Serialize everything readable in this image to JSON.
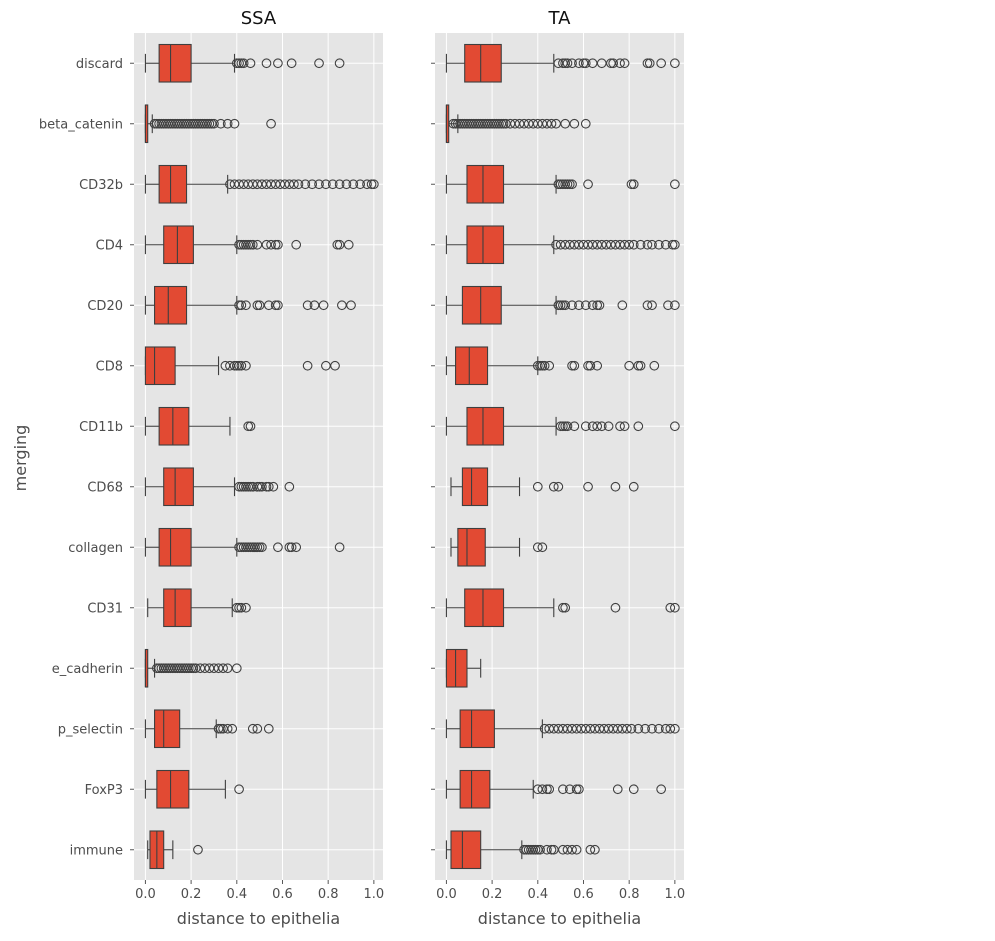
{
  "chart_data": {
    "type": "boxplot",
    "orientation": "horizontal",
    "ylabel": "merging",
    "categories": [
      "discard",
      "beta_catenin",
      "CD32b",
      "CD4",
      "CD20",
      "CD8",
      "CD11b",
      "CD68",
      "collagen",
      "CD31",
      "e_cadherin",
      "p_selectin",
      "FoxP3",
      "immune"
    ],
    "xlim": [
      -0.05,
      1.04
    ],
    "xticks": [
      "0.0",
      "0.2",
      "0.4",
      "0.6",
      "0.8",
      "1.0"
    ],
    "grid": true,
    "box_color": "#E24A33",
    "background_color": "#E5E5E5",
    "panels": [
      {
        "title": "SSA",
        "xlabel": "distance to epithelia",
        "boxes": [
          {
            "category": "discard",
            "whislo": 0.0,
            "q1": 0.06,
            "med": 0.11,
            "q3": 0.2,
            "whishi": 0.39,
            "fliers": [
              0.4,
              0.41,
              0.42,
              0.43,
              0.46,
              0.53,
              0.58,
              0.64,
              0.76,
              0.85
            ]
          },
          {
            "category": "beta_catenin",
            "whislo": 0.0,
            "q1": 0.0,
            "med": 0.0,
            "q3": 0.01,
            "whishi": 0.03,
            "fliers": [
              0.04,
              0.05,
              0.06,
              0.07,
              0.08,
              0.09,
              0.1,
              0.11,
              0.12,
              0.13,
              0.14,
              0.15,
              0.16,
              0.17,
              0.18,
              0.19,
              0.2,
              0.21,
              0.22,
              0.23,
              0.24,
              0.25,
              0.26,
              0.27,
              0.28,
              0.29,
              0.3,
              0.33,
              0.36,
              0.39,
              0.55
            ]
          },
          {
            "category": "CD32b",
            "whislo": 0.0,
            "q1": 0.06,
            "med": 0.11,
            "q3": 0.18,
            "whishi": 0.36,
            "fliers": [
              0.37,
              0.39,
              0.41,
              0.43,
              0.45,
              0.47,
              0.49,
              0.51,
              0.53,
              0.55,
              0.57,
              0.59,
              0.61,
              0.63,
              0.65,
              0.67,
              0.7,
              0.73,
              0.76,
              0.79,
              0.82,
              0.85,
              0.88,
              0.91,
              0.94,
              0.97,
              0.99,
              1.0
            ]
          },
          {
            "category": "CD4",
            "whislo": 0.0,
            "q1": 0.08,
            "med": 0.14,
            "q3": 0.21,
            "whishi": 0.4,
            "fliers": [
              0.41,
              0.42,
              0.43,
              0.44,
              0.45,
              0.46,
              0.47,
              0.49,
              0.53,
              0.55,
              0.57,
              0.58,
              0.66,
              0.84,
              0.85,
              0.89
            ]
          },
          {
            "category": "CD20",
            "whislo": 0.0,
            "q1": 0.04,
            "med": 0.1,
            "q3": 0.18,
            "whishi": 0.4,
            "fliers": [
              0.41,
              0.42,
              0.44,
              0.49,
              0.5,
              0.54,
              0.57,
              0.58,
              0.71,
              0.74,
              0.78,
              0.86,
              0.9
            ]
          },
          {
            "category": "CD8",
            "whislo": 0.0,
            "q1": 0.0,
            "med": 0.04,
            "q3": 0.13,
            "whishi": 0.32,
            "fliers": [
              0.35,
              0.37,
              0.39,
              0.4,
              0.41,
              0.42,
              0.44,
              0.71,
              0.79,
              0.83
            ]
          },
          {
            "category": "CD11b",
            "whislo": 0.0,
            "q1": 0.06,
            "med": 0.12,
            "q3": 0.19,
            "whishi": 0.37,
            "fliers": [
              0.45,
              0.46
            ]
          },
          {
            "category": "CD68",
            "whislo": 0.0,
            "q1": 0.08,
            "med": 0.13,
            "q3": 0.21,
            "whishi": 0.39,
            "fliers": [
              0.41,
              0.42,
              0.43,
              0.44,
              0.45,
              0.46,
              0.47,
              0.49,
              0.5,
              0.51,
              0.53,
              0.54,
              0.56,
              0.63
            ]
          },
          {
            "category": "collagen",
            "whislo": 0.0,
            "q1": 0.06,
            "med": 0.11,
            "q3": 0.2,
            "whishi": 0.4,
            "fliers": [
              0.41,
              0.42,
              0.43,
              0.44,
              0.45,
              0.46,
              0.47,
              0.48,
              0.49,
              0.5,
              0.51,
              0.58,
              0.63,
              0.64,
              0.66,
              0.85
            ]
          },
          {
            "category": "CD31",
            "whislo": 0.01,
            "q1": 0.08,
            "med": 0.13,
            "q3": 0.2,
            "whishi": 0.38,
            "fliers": [
              0.4,
              0.41,
              0.42,
              0.44
            ]
          },
          {
            "category": "e_cadherin",
            "whislo": 0.0,
            "q1": 0.0,
            "med": 0.0,
            "q3": 0.01,
            "whishi": 0.04,
            "fliers": [
              0.05,
              0.06,
              0.07,
              0.08,
              0.09,
              0.1,
              0.11,
              0.12,
              0.13,
              0.14,
              0.15,
              0.16,
              0.17,
              0.18,
              0.19,
              0.2,
              0.21,
              0.22,
              0.24,
              0.26,
              0.28,
              0.3,
              0.32,
              0.34,
              0.36,
              0.4
            ]
          },
          {
            "category": "p_selectin",
            "whislo": 0.0,
            "q1": 0.04,
            "med": 0.08,
            "q3": 0.15,
            "whishi": 0.31,
            "fliers": [
              0.32,
              0.33,
              0.34,
              0.36,
              0.38,
              0.47,
              0.49,
              0.54
            ]
          },
          {
            "category": "FoxP3",
            "whislo": 0.0,
            "q1": 0.05,
            "med": 0.11,
            "q3": 0.19,
            "whishi": 0.35,
            "fliers": [
              0.41
            ]
          },
          {
            "category": "immune",
            "whislo": 0.01,
            "q1": 0.02,
            "med": 0.05,
            "q3": 0.08,
            "whishi": 0.12,
            "fliers": [
              0.23
            ]
          }
        ]
      },
      {
        "title": "TA",
        "xlabel": "distance to epithelia",
        "boxes": [
          {
            "category": "discard",
            "whislo": 0.0,
            "q1": 0.08,
            "med": 0.15,
            "q3": 0.24,
            "whishi": 0.47,
            "fliers": [
              0.49,
              0.51,
              0.52,
              0.53,
              0.55,
              0.58,
              0.6,
              0.61,
              0.64,
              0.68,
              0.72,
              0.73,
              0.76,
              0.78,
              0.88,
              0.89,
              0.94,
              1.0
            ]
          },
          {
            "category": "beta_catenin",
            "whislo": 0.0,
            "q1": 0.0,
            "med": 0.0,
            "q3": 0.01,
            "whishi": 0.05,
            "fliers": [
              0.03,
              0.04,
              0.05,
              0.06,
              0.07,
              0.08,
              0.09,
              0.1,
              0.11,
              0.12,
              0.13,
              0.14,
              0.15,
              0.16,
              0.17,
              0.18,
              0.19,
              0.2,
              0.21,
              0.22,
              0.23,
              0.24,
              0.25,
              0.26,
              0.28,
              0.3,
              0.32,
              0.34,
              0.36,
              0.38,
              0.4,
              0.42,
              0.44,
              0.46,
              0.48,
              0.52,
              0.56,
              0.61
            ]
          },
          {
            "category": "CD32b",
            "whislo": 0.0,
            "q1": 0.09,
            "med": 0.16,
            "q3": 0.25,
            "whishi": 0.48,
            "fliers": [
              0.49,
              0.5,
              0.51,
              0.52,
              0.53,
              0.54,
              0.55,
              0.62,
              0.81,
              0.82,
              1.0
            ]
          },
          {
            "category": "CD4",
            "whislo": 0.0,
            "q1": 0.09,
            "med": 0.16,
            "q3": 0.25,
            "whishi": 0.47,
            "fliers": [
              0.48,
              0.5,
              0.52,
              0.54,
              0.56,
              0.58,
              0.6,
              0.62,
              0.64,
              0.66,
              0.68,
              0.7,
              0.72,
              0.74,
              0.76,
              0.78,
              0.8,
              0.82,
              0.85,
              0.88,
              0.9,
              0.93,
              0.96,
              0.99,
              1.0
            ]
          },
          {
            "category": "CD20",
            "whislo": 0.0,
            "q1": 0.07,
            "med": 0.15,
            "q3": 0.24,
            "whishi": 0.48,
            "fliers": [
              0.49,
              0.5,
              0.51,
              0.52,
              0.55,
              0.58,
              0.61,
              0.64,
              0.66,
              0.67,
              0.77,
              0.88,
              0.9,
              0.97,
              1.0
            ]
          },
          {
            "category": "CD8",
            "whislo": 0.0,
            "q1": 0.04,
            "med": 0.1,
            "q3": 0.18,
            "whishi": 0.4,
            "fliers": [
              0.4,
              0.41,
              0.42,
              0.43,
              0.45,
              0.55,
              0.56,
              0.62,
              0.63,
              0.66,
              0.8,
              0.84,
              0.85,
              0.91
            ]
          },
          {
            "category": "CD11b",
            "whislo": 0.0,
            "q1": 0.09,
            "med": 0.16,
            "q3": 0.25,
            "whishi": 0.48,
            "fliers": [
              0.5,
              0.51,
              0.52,
              0.53,
              0.56,
              0.61,
              0.64,
              0.66,
              0.68,
              0.71,
              0.76,
              0.78,
              0.84,
              1.0
            ]
          },
          {
            "category": "CD68",
            "whislo": 0.02,
            "q1": 0.07,
            "med": 0.11,
            "q3": 0.18,
            "whishi": 0.32,
            "fliers": [
              0.4,
              0.47,
              0.49,
              0.62,
              0.74,
              0.82
            ]
          },
          {
            "category": "collagen",
            "whislo": 0.02,
            "q1": 0.05,
            "med": 0.09,
            "q3": 0.17,
            "whishi": 0.32,
            "fliers": [
              0.4,
              0.42
            ]
          },
          {
            "category": "CD31",
            "whislo": 0.0,
            "q1": 0.08,
            "med": 0.16,
            "q3": 0.25,
            "whishi": 0.47,
            "fliers": [
              0.51,
              0.52,
              0.74,
              0.98,
              1.0
            ]
          },
          {
            "category": "e_cadherin",
            "whislo": 0.0,
            "q1": 0.0,
            "med": 0.04,
            "q3": 0.09,
            "whishi": 0.15,
            "fliers": []
          },
          {
            "category": "p_selectin",
            "whislo": 0.0,
            "q1": 0.06,
            "med": 0.11,
            "q3": 0.21,
            "whishi": 0.42,
            "fliers": [
              0.43,
              0.45,
              0.47,
              0.49,
              0.51,
              0.53,
              0.55,
              0.57,
              0.59,
              0.61,
              0.63,
              0.65,
              0.67,
              0.69,
              0.71,
              0.73,
              0.75,
              0.77,
              0.79,
              0.81,
              0.84,
              0.87,
              0.9,
              0.93,
              0.96,
              0.98,
              1.0
            ]
          },
          {
            "category": "FoxP3",
            "whislo": 0.0,
            "q1": 0.06,
            "med": 0.11,
            "q3": 0.19,
            "whishi": 0.38,
            "fliers": [
              0.4,
              0.42,
              0.44,
              0.45,
              0.51,
              0.54,
              0.57,
              0.58,
              0.75,
              0.82,
              0.94
            ]
          },
          {
            "category": "immune",
            "whislo": 0.0,
            "q1": 0.02,
            "med": 0.07,
            "q3": 0.15,
            "whishi": 0.33,
            "fliers": [
              0.34,
              0.35,
              0.36,
              0.37,
              0.38,
              0.39,
              0.4,
              0.41,
              0.44,
              0.46,
              0.47,
              0.51,
              0.53,
              0.55,
              0.57,
              0.63,
              0.65
            ]
          }
        ]
      }
    ]
  }
}
